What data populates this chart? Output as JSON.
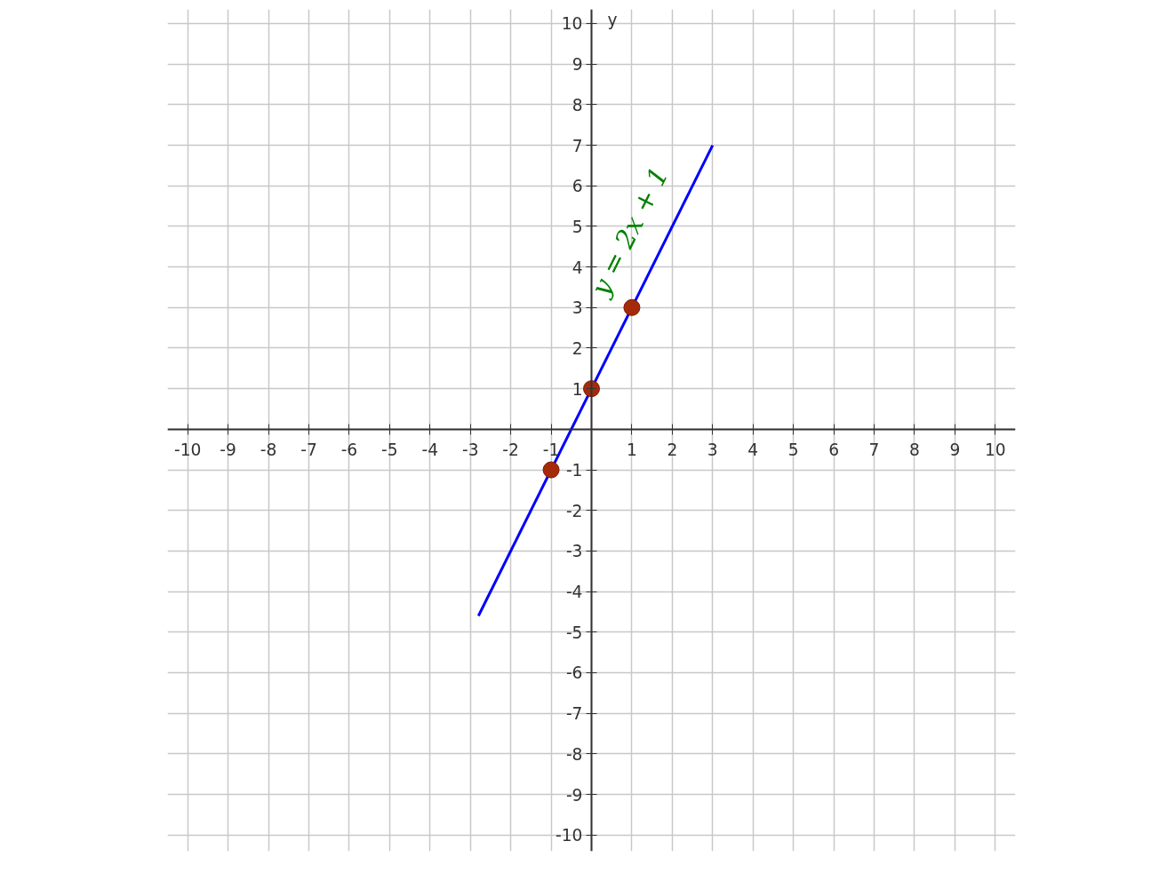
{
  "chart_data": {
    "type": "line",
    "ylabel": "y",
    "series": [
      {
        "x": [
          -2.8,
          3
        ],
        "values": [
          -4.6,
          7
        ],
        "color": "#0000ff"
      },
      {
        "type": "scatter",
        "x": [
          -1,
          0,
          1
        ],
        "values": [
          -1,
          1,
          3
        ],
        "color": "#a52a0a",
        "marker": "circle"
      }
    ],
    "annotations": [
      "y = 2x + 1"
    ],
    "xlim": [
      -10.5,
      10.5
    ],
    "ylim": [
      -10.4,
      10.35
    ],
    "xticks": [
      -10,
      -9,
      -8,
      -7,
      -6,
      -5,
      -4,
      -3,
      -2,
      -1,
      1,
      2,
      3,
      4,
      5,
      6,
      7,
      8,
      9,
      10
    ],
    "yticks": [
      -10,
      -9,
      -8,
      -7,
      -6,
      -5,
      -4,
      -3,
      -2,
      -1,
      1,
      2,
      3,
      4,
      5,
      6,
      7,
      8,
      9,
      10
    ],
    "grid": true
  }
}
